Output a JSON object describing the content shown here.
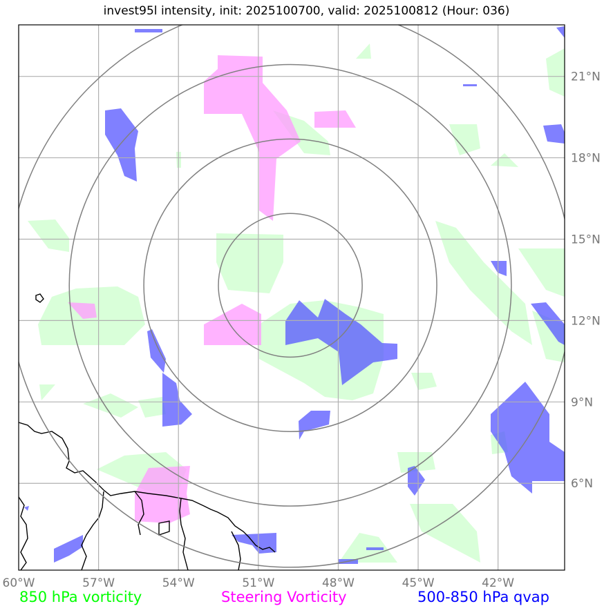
{
  "title": "invest95l intensity, init: 2025100700, valid: 2025100812 (Hour: 036)",
  "map": {
    "lon_range": [
      -60,
      -39.5
    ],
    "lat_range": [
      2.8,
      22.9
    ],
    "lon_ticks": [
      {
        "value": -60,
        "label": "60°W"
      },
      {
        "value": -57,
        "label": "57°W"
      },
      {
        "value": -54,
        "label": "54°W"
      },
      {
        "value": -51,
        "label": "51°W"
      },
      {
        "value": -48,
        "label": "48°W"
      },
      {
        "value": -45,
        "label": "45°W"
      },
      {
        "value": -42,
        "label": "42°W"
      }
    ],
    "lat_ticks": [
      {
        "value": 6,
        "label": "6°N"
      },
      {
        "value": 9,
        "label": "9°N"
      },
      {
        "value": 12,
        "label": "12°N"
      },
      {
        "value": 15,
        "label": "15°N"
      },
      {
        "value": 18,
        "label": "18°N"
      },
      {
        "value": 21,
        "label": "21°N"
      }
    ],
    "storm_center": {
      "lon": -49.8,
      "lat": 13.3
    },
    "range_rings_deg": [
      2.7,
      5.5,
      8.3,
      10.6
    ],
    "colors": {
      "vorticity_850": "#ccffcc",
      "steering_vorticity": "#ff99ff",
      "qvap": "#5555ff",
      "rings": "#808080",
      "grid": "#b0b0b0",
      "coast": "#000000"
    }
  },
  "legend": {
    "vorticity_850": {
      "label": "850 hPa vorticity",
      "color": "#00ff00"
    },
    "steering": {
      "label": "Steering Vorticity",
      "color": "#ff00ff"
    },
    "qvap": {
      "label": "500-850 hPa qvap",
      "color": "#0000ff"
    }
  }
}
